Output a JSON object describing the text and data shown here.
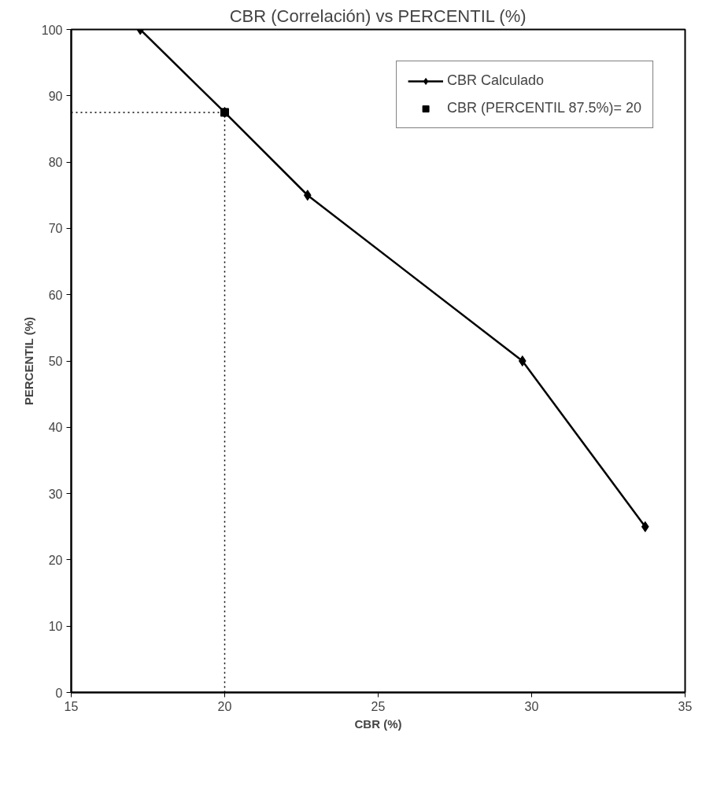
{
  "chart_data": {
    "type": "line",
    "title": "CBR (Correlación) vs PERCENTIL (%)",
    "xlabel": "CBR (%)",
    "ylabel": "PERCENTIL (%)",
    "series": [
      {
        "name": "CBR Calculado",
        "color": "#000000",
        "marker": "diamond",
        "x": [
          17.25,
          20,
          22.7,
          29.7,
          33.7
        ],
        "values": [
          100,
          87.5,
          75,
          50,
          25
        ]
      },
      {
        "name": "CBR (PERCENTIL 87.5%)= 20",
        "type": "scatter",
        "color": "#000000",
        "marker": "square",
        "x": [
          20
        ],
        "values": [
          87.5
        ]
      }
    ],
    "ref_lines": [
      {
        "axis": "x",
        "value": 20,
        "line_style": "dotted",
        "color": "#000000"
      },
      {
        "axis": "y",
        "value": 87.5,
        "line_style": "dotted",
        "color": "#000000"
      }
    ],
    "xlim": [
      15,
      35
    ],
    "xticks": [
      15,
      20,
      25,
      30,
      35
    ],
    "ylim": [
      0,
      100
    ],
    "yticks": [
      0,
      10,
      20,
      30,
      40,
      50,
      60,
      70,
      80,
      90,
      100
    ],
    "grid": false,
    "legend": "top right"
  }
}
